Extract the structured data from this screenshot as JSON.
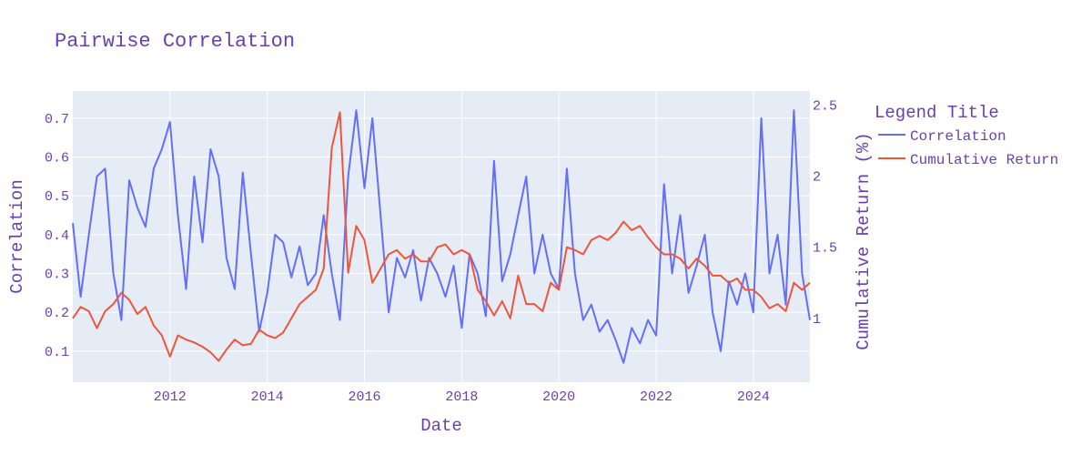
{
  "chart_data": {
    "type": "line",
    "title": "Pairwise Correlation",
    "xlabel": "Date",
    "ylabel": "Correlation",
    "y2label": "Cumulative Return (%)",
    "legend_title": "Legend Title",
    "legend_position": "top-right",
    "grid": true,
    "xlim": [
      "2010-01-01",
      "2025-03-01"
    ],
    "ylim": [
      0.02,
      0.77
    ],
    "y2lim": [
      0.55,
      2.6
    ],
    "x_ticks": [
      "2012",
      "2014",
      "2016",
      "2018",
      "2020",
      "2022",
      "2024"
    ],
    "y_ticks": [
      "0.1",
      "0.2",
      "0.3",
      "0.4",
      "0.5",
      "0.6",
      "0.7"
    ],
    "y2_ticks": [
      "1",
      "1.5",
      "2",
      "2.5"
    ],
    "colors": {
      "plot_bg": "#e5ecf6",
      "grid": "#ffffff",
      "text": "#6a3fb0",
      "correlation": "#636efa",
      "return": "#ef553b"
    },
    "series": [
      {
        "name": "Correlation",
        "axis": "y",
        "x": [
          "2010-01-01",
          "2010-03-01",
          "2010-05-01",
          "2010-07-01",
          "2010-09-01",
          "2010-11-01",
          "2011-01-01",
          "2011-03-01",
          "2011-05-01",
          "2011-07-01",
          "2011-09-01",
          "2011-11-01",
          "2012-01-01",
          "2012-03-01",
          "2012-05-01",
          "2012-07-01",
          "2012-09-01",
          "2012-11-01",
          "2013-01-01",
          "2013-03-01",
          "2013-05-01",
          "2013-07-01",
          "2013-09-01",
          "2013-11-01",
          "2014-01-01",
          "2014-03-01",
          "2014-05-01",
          "2014-07-01",
          "2014-09-01",
          "2014-11-01",
          "2015-01-01",
          "2015-03-01",
          "2015-05-01",
          "2015-07-01",
          "2015-09-01",
          "2015-11-01",
          "2016-01-01",
          "2016-03-01",
          "2016-05-01",
          "2016-07-01",
          "2016-09-01",
          "2016-11-01",
          "2017-01-01",
          "2017-03-01",
          "2017-05-01",
          "2017-07-01",
          "2017-09-01",
          "2017-11-01",
          "2018-01-01",
          "2018-03-01",
          "2018-05-01",
          "2018-07-01",
          "2018-09-01",
          "2018-11-01",
          "2019-01-01",
          "2019-03-01",
          "2019-05-01",
          "2019-07-01",
          "2019-09-01",
          "2019-11-01",
          "2020-01-01",
          "2020-03-01",
          "2020-05-01",
          "2020-07-01",
          "2020-09-01",
          "2020-11-01",
          "2021-01-01",
          "2021-03-01",
          "2021-05-01",
          "2021-07-01",
          "2021-09-01",
          "2021-11-01",
          "2022-01-01",
          "2022-03-01",
          "2022-05-01",
          "2022-07-01",
          "2022-09-01",
          "2022-11-01",
          "2023-01-01",
          "2023-03-01",
          "2023-05-01",
          "2023-07-01",
          "2023-09-01",
          "2023-11-01",
          "2024-01-01",
          "2024-03-01",
          "2024-05-01",
          "2024-07-01",
          "2024-09-01",
          "2024-11-01",
          "2025-01-01",
          "2025-03-01"
        ],
        "values": [
          0.43,
          0.24,
          0.4,
          0.55,
          0.57,
          0.3,
          0.18,
          0.54,
          0.47,
          0.42,
          0.57,
          0.62,
          0.69,
          0.45,
          0.26,
          0.55,
          0.38,
          0.62,
          0.55,
          0.34,
          0.26,
          0.56,
          0.35,
          0.15,
          0.25,
          0.4,
          0.38,
          0.29,
          0.37,
          0.27,
          0.3,
          0.45,
          0.3,
          0.18,
          0.55,
          0.72,
          0.52,
          0.7,
          0.45,
          0.2,
          0.34,
          0.29,
          0.36,
          0.23,
          0.34,
          0.3,
          0.24,
          0.32,
          0.16,
          0.35,
          0.3,
          0.19,
          0.59,
          0.28,
          0.35,
          0.45,
          0.55,
          0.3,
          0.4,
          0.3,
          0.26,
          0.57,
          0.3,
          0.18,
          0.22,
          0.15,
          0.18,
          0.13,
          0.07,
          0.16,
          0.12,
          0.18,
          0.14,
          0.53,
          0.3,
          0.45,
          0.25,
          0.32,
          0.4,
          0.2,
          0.1,
          0.28,
          0.22,
          0.3,
          0.2,
          0.7,
          0.3,
          0.4,
          0.22,
          0.72,
          0.3,
          0.18
        ]
      },
      {
        "name": "Cumulative Return",
        "axis": "y2",
        "x": [
          "2010-01-01",
          "2010-03-01",
          "2010-05-01",
          "2010-07-01",
          "2010-09-01",
          "2010-11-01",
          "2011-01-01",
          "2011-03-01",
          "2011-05-01",
          "2011-07-01",
          "2011-09-01",
          "2011-11-01",
          "2012-01-01",
          "2012-03-01",
          "2012-05-01",
          "2012-07-01",
          "2012-09-01",
          "2012-11-01",
          "2013-01-01",
          "2013-03-01",
          "2013-05-01",
          "2013-07-01",
          "2013-09-01",
          "2013-11-01",
          "2014-01-01",
          "2014-03-01",
          "2014-05-01",
          "2014-07-01",
          "2014-09-01",
          "2014-11-01",
          "2015-01-01",
          "2015-03-01",
          "2015-05-01",
          "2015-07-01",
          "2015-09-01",
          "2015-11-01",
          "2016-01-01",
          "2016-03-01",
          "2016-05-01",
          "2016-07-01",
          "2016-09-01",
          "2016-11-01",
          "2017-01-01",
          "2017-03-01",
          "2017-05-01",
          "2017-07-01",
          "2017-09-01",
          "2017-11-01",
          "2018-01-01",
          "2018-03-01",
          "2018-05-01",
          "2018-07-01",
          "2018-09-01",
          "2018-11-01",
          "2019-01-01",
          "2019-03-01",
          "2019-05-01",
          "2019-07-01",
          "2019-09-01",
          "2019-11-01",
          "2020-01-01",
          "2020-03-01",
          "2020-05-01",
          "2020-07-01",
          "2020-09-01",
          "2020-11-01",
          "2021-01-01",
          "2021-03-01",
          "2021-05-01",
          "2021-07-01",
          "2021-09-01",
          "2021-11-01",
          "2022-01-01",
          "2022-03-01",
          "2022-05-01",
          "2022-07-01",
          "2022-09-01",
          "2022-11-01",
          "2023-01-01",
          "2023-03-01",
          "2023-05-01",
          "2023-07-01",
          "2023-09-01",
          "2023-11-01",
          "2024-01-01",
          "2024-03-01",
          "2024-05-01",
          "2024-07-01",
          "2024-09-01",
          "2024-11-01",
          "2025-01-01",
          "2025-03-01"
        ],
        "values": [
          1.0,
          1.08,
          1.05,
          0.93,
          1.05,
          1.1,
          1.18,
          1.13,
          1.03,
          1.08,
          0.95,
          0.88,
          0.73,
          0.88,
          0.85,
          0.83,
          0.8,
          0.76,
          0.7,
          0.78,
          0.85,
          0.81,
          0.82,
          0.92,
          0.88,
          0.86,
          0.9,
          1.0,
          1.1,
          1.15,
          1.2,
          1.35,
          2.2,
          2.45,
          1.32,
          1.65,
          1.55,
          1.25,
          1.35,
          1.45,
          1.48,
          1.42,
          1.45,
          1.4,
          1.4,
          1.5,
          1.52,
          1.45,
          1.48,
          1.45,
          1.2,
          1.12,
          1.02,
          1.12,
          1.0,
          1.3,
          1.1,
          1.1,
          1.05,
          1.25,
          1.2,
          1.5,
          1.48,
          1.45,
          1.55,
          1.58,
          1.55,
          1.6,
          1.68,
          1.62,
          1.65,
          1.57,
          1.5,
          1.45,
          1.45,
          1.42,
          1.35,
          1.42,
          1.37,
          1.3,
          1.3,
          1.25,
          1.28,
          1.2,
          1.2,
          1.15,
          1.07,
          1.1,
          1.05,
          1.25,
          1.2,
          1.25
        ]
      }
    ]
  }
}
